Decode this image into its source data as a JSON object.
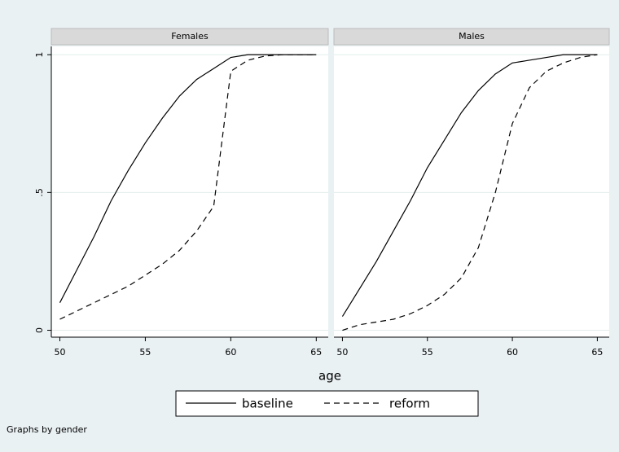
{
  "chart_data": [
    {
      "type": "line",
      "title": "Females",
      "x": [
        50,
        51,
        52,
        53,
        54,
        55,
        56,
        57,
        58,
        59,
        60,
        61,
        62,
        63,
        64,
        65
      ],
      "series": [
        {
          "name": "baseline",
          "color": "#000000",
          "dash": "solid",
          "values": [
            0.1,
            0.22,
            0.34,
            0.47,
            0.58,
            0.68,
            0.77,
            0.85,
            0.91,
            0.95,
            0.99,
            1,
            1,
            1,
            1,
            1
          ]
        },
        {
          "name": "reform",
          "color": "#000000",
          "dash": "dashed",
          "values": [
            0.04,
            0.07,
            0.1,
            0.13,
            0.16,
            0.2,
            0.24,
            0.29,
            0.36,
            0.45,
            0.94,
            0.98,
            0.995,
            1,
            1,
            1
          ]
        }
      ],
      "xlim": [
        49.5,
        65.7
      ],
      "xticks": [
        50,
        55,
        60,
        65
      ],
      "ylim": [
        -0.025,
        1.03
      ],
      "yticks": [
        0,
        {
          "value": 0.5,
          "label": ".5"
        },
        1
      ],
      "grid": true
    },
    {
      "type": "line",
      "title": "Males",
      "x": [
        50,
        51,
        52,
        53,
        54,
        55,
        56,
        57,
        58,
        59,
        60,
        61,
        62,
        63,
        64,
        65
      ],
      "series": [
        {
          "name": "baseline",
          "color": "#000000",
          "dash": "solid",
          "values": [
            0.05,
            0.15,
            0.25,
            0.36,
            0.47,
            0.59,
            0.69,
            0.79,
            0.87,
            0.93,
            0.97,
            0.98,
            0.99,
            1,
            1,
            1
          ]
        },
        {
          "name": "reform",
          "color": "#000000",
          "dash": "dashed",
          "values": [
            0.0,
            0.02,
            0.03,
            0.04,
            0.06,
            0.09,
            0.13,
            0.19,
            0.3,
            0.5,
            0.75,
            0.88,
            0.94,
            0.97,
            0.99,
            1
          ]
        }
      ],
      "xlim": [
        49.5,
        65.7
      ],
      "xticks": [
        50,
        55,
        60,
        65
      ],
      "ylim": [
        -0.025,
        1.03
      ],
      "yticks": [
        0,
        {
          "value": 0.5,
          "label": ".5"
        },
        1
      ],
      "grid": true
    }
  ],
  "xlabel": "age",
  "note": "Graphs by gender"
}
